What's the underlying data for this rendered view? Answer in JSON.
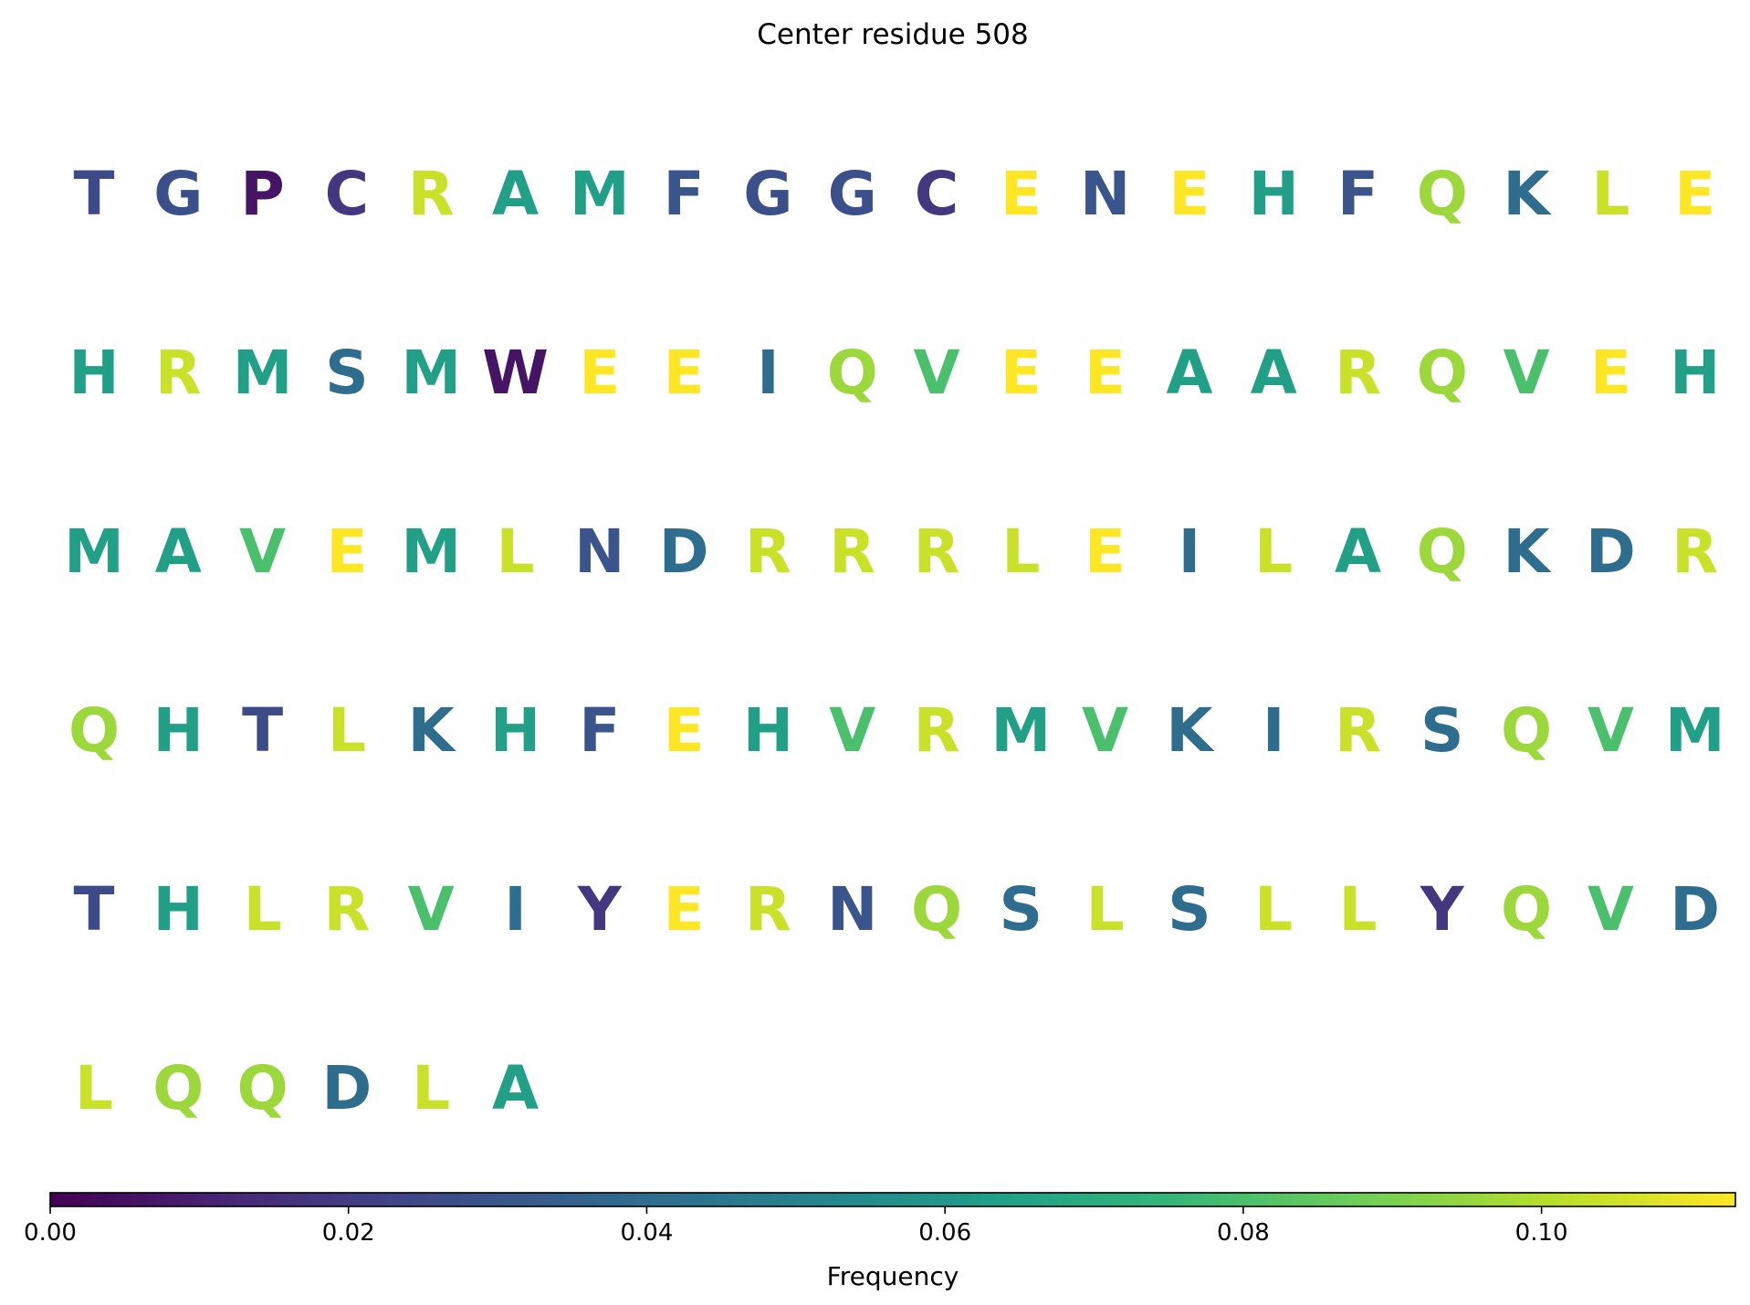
{
  "chart_data": {
    "type": "heatmap",
    "title": "Center residue 508",
    "columns": 20,
    "residues": [
      {
        "aa": "T",
        "freq": 0.026
      },
      {
        "aa": "G",
        "freq": 0.028
      },
      {
        "aa": "P",
        "freq": 0.006
      },
      {
        "aa": "C",
        "freq": 0.018
      },
      {
        "aa": "R",
        "freq": 0.104
      },
      {
        "aa": "A",
        "freq": 0.064
      },
      {
        "aa": "M",
        "freq": 0.064
      },
      {
        "aa": "F",
        "freq": 0.03
      },
      {
        "aa": "G",
        "freq": 0.028
      },
      {
        "aa": "G",
        "freq": 0.028
      },
      {
        "aa": "C",
        "freq": 0.018
      },
      {
        "aa": "E",
        "freq": 0.113
      },
      {
        "aa": "N",
        "freq": 0.03
      },
      {
        "aa": "E",
        "freq": 0.113
      },
      {
        "aa": "H",
        "freq": 0.064
      },
      {
        "aa": "F",
        "freq": 0.03
      },
      {
        "aa": "Q",
        "freq": 0.096
      },
      {
        "aa": "K",
        "freq": 0.04
      },
      {
        "aa": "L",
        "freq": 0.104
      },
      {
        "aa": "E",
        "freq": 0.113
      },
      {
        "aa": "H",
        "freq": 0.064
      },
      {
        "aa": "R",
        "freq": 0.104
      },
      {
        "aa": "M",
        "freq": 0.064
      },
      {
        "aa": "S",
        "freq": 0.04
      },
      {
        "aa": "M",
        "freq": 0.064
      },
      {
        "aa": "W",
        "freq": 0.006
      },
      {
        "aa": "E",
        "freq": 0.113
      },
      {
        "aa": "E",
        "freq": 0.113
      },
      {
        "aa": "I",
        "freq": 0.04
      },
      {
        "aa": "Q",
        "freq": 0.096
      },
      {
        "aa": "V",
        "freq": 0.08
      },
      {
        "aa": "E",
        "freq": 0.113
      },
      {
        "aa": "E",
        "freq": 0.113
      },
      {
        "aa": "A",
        "freq": 0.064
      },
      {
        "aa": "A",
        "freq": 0.064
      },
      {
        "aa": "R",
        "freq": 0.104
      },
      {
        "aa": "Q",
        "freq": 0.096
      },
      {
        "aa": "V",
        "freq": 0.08
      },
      {
        "aa": "E",
        "freq": 0.113
      },
      {
        "aa": "H",
        "freq": 0.064
      },
      {
        "aa": "M",
        "freq": 0.064
      },
      {
        "aa": "A",
        "freq": 0.064
      },
      {
        "aa": "V",
        "freq": 0.08
      },
      {
        "aa": "E",
        "freq": 0.113
      },
      {
        "aa": "M",
        "freq": 0.064
      },
      {
        "aa": "L",
        "freq": 0.104
      },
      {
        "aa": "N",
        "freq": 0.03
      },
      {
        "aa": "D",
        "freq": 0.04
      },
      {
        "aa": "R",
        "freq": 0.104
      },
      {
        "aa": "R",
        "freq": 0.104
      },
      {
        "aa": "R",
        "freq": 0.104
      },
      {
        "aa": "L",
        "freq": 0.104
      },
      {
        "aa": "E",
        "freq": 0.113
      },
      {
        "aa": "I",
        "freq": 0.04
      },
      {
        "aa": "L",
        "freq": 0.104
      },
      {
        "aa": "A",
        "freq": 0.064
      },
      {
        "aa": "Q",
        "freq": 0.096
      },
      {
        "aa": "K",
        "freq": 0.04
      },
      {
        "aa": "D",
        "freq": 0.04
      },
      {
        "aa": "R",
        "freq": 0.104
      },
      {
        "aa": "Q",
        "freq": 0.096
      },
      {
        "aa": "H",
        "freq": 0.064
      },
      {
        "aa": "T",
        "freq": 0.026
      },
      {
        "aa": "L",
        "freq": 0.104
      },
      {
        "aa": "K",
        "freq": 0.04
      },
      {
        "aa": "H",
        "freq": 0.064
      },
      {
        "aa": "F",
        "freq": 0.03
      },
      {
        "aa": "E",
        "freq": 0.113
      },
      {
        "aa": "H",
        "freq": 0.064
      },
      {
        "aa": "V",
        "freq": 0.08
      },
      {
        "aa": "R",
        "freq": 0.104
      },
      {
        "aa": "M",
        "freq": 0.064
      },
      {
        "aa": "V",
        "freq": 0.08
      },
      {
        "aa": "K",
        "freq": 0.04
      },
      {
        "aa": "I",
        "freq": 0.04
      },
      {
        "aa": "R",
        "freq": 0.104
      },
      {
        "aa": "S",
        "freq": 0.04
      },
      {
        "aa": "Q",
        "freq": 0.096
      },
      {
        "aa": "V",
        "freq": 0.08
      },
      {
        "aa": "M",
        "freq": 0.064
      },
      {
        "aa": "T",
        "freq": 0.026
      },
      {
        "aa": "H",
        "freq": 0.064
      },
      {
        "aa": "L",
        "freq": 0.104
      },
      {
        "aa": "R",
        "freq": 0.104
      },
      {
        "aa": "V",
        "freq": 0.08
      },
      {
        "aa": "I",
        "freq": 0.04
      },
      {
        "aa": "Y",
        "freq": 0.018
      },
      {
        "aa": "E",
        "freq": 0.113
      },
      {
        "aa": "R",
        "freq": 0.104
      },
      {
        "aa": "N",
        "freq": 0.03
      },
      {
        "aa": "Q",
        "freq": 0.096
      },
      {
        "aa": "S",
        "freq": 0.04
      },
      {
        "aa": "L",
        "freq": 0.104
      },
      {
        "aa": "S",
        "freq": 0.04
      },
      {
        "aa": "L",
        "freq": 0.104
      },
      {
        "aa": "L",
        "freq": 0.104
      },
      {
        "aa": "Y",
        "freq": 0.018
      },
      {
        "aa": "Q",
        "freq": 0.096
      },
      {
        "aa": "V",
        "freq": 0.08
      },
      {
        "aa": "D",
        "freq": 0.04
      },
      {
        "aa": "L",
        "freq": 0.104
      },
      {
        "aa": "Q",
        "freq": 0.096
      },
      {
        "aa": "Q",
        "freq": 0.096
      },
      {
        "aa": "D",
        "freq": 0.04
      },
      {
        "aa": "L",
        "freq": 0.104
      },
      {
        "aa": "A",
        "freq": 0.064
      }
    ],
    "colorbar": {
      "label": "Frequency",
      "colormap": "viridis",
      "range": [
        0.0,
        0.113
      ],
      "ticks": [
        0.0,
        0.02,
        0.04,
        0.06,
        0.08,
        0.1
      ],
      "tick_labels": [
        "0.00",
        "0.02",
        "0.04",
        "0.06",
        "0.08",
        "0.10"
      ],
      "orientation": "horizontal"
    },
    "grid": false,
    "viridis_stops": [
      "#440154",
      "#482878",
      "#3e4989",
      "#31688e",
      "#26828e",
      "#1f9e89",
      "#35b779",
      "#6ece58",
      "#b5de2b",
      "#fde725"
    ]
  }
}
